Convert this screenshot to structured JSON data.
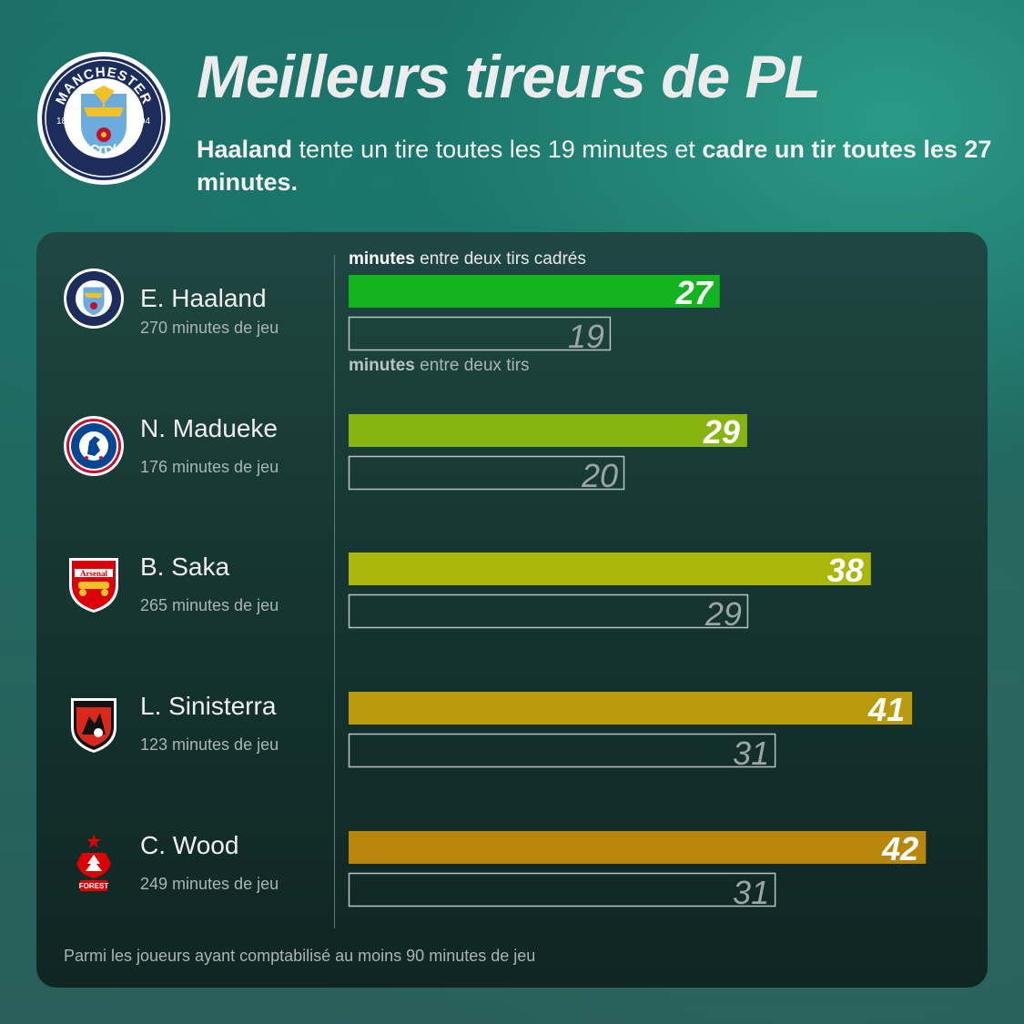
{
  "header": {
    "title": "Meilleurs tireurs de PL",
    "subtitle_bold_1": "Haaland",
    "subtitle_text_1": " tente un tire toutes les 19 minutes et ",
    "subtitle_bold_2": "cadre un tir toutes les 27 minutes."
  },
  "club_badge": {
    "top_text": "MANCHESTER",
    "bottom_text": "CITY",
    "year_left": "18",
    "year_right": "94",
    "colors": {
      "ring": "#1c2c5b",
      "sky": "#6cabdd",
      "gold": "#f0c228",
      "rose": "#c0102e"
    }
  },
  "legend": {
    "on_target_bold": "minutes",
    "on_target_text": " entre deux tirs cadrés",
    "shots_bold": "minutes",
    "shots_text": " entre deux tirs"
  },
  "footnote": "Parmi les joueurs ayant comptabilisé au moins 90 minutes de jeu",
  "players": [
    {
      "name": "E. Haaland",
      "minutes": "270 minutes de jeu",
      "club_icon": "manchester-city-crest"
    },
    {
      "name": "N. Madueke",
      "minutes": "176 minutes de jeu",
      "club_icon": "chelsea-crest"
    },
    {
      "name": "B. Saka",
      "minutes": "265 minutes de jeu",
      "club_icon": "arsenal-crest"
    },
    {
      "name": "L. Sinisterra",
      "minutes": "123 minutes de jeu",
      "club_icon": "bournemouth-crest"
    },
    {
      "name": "C. Wood",
      "minutes": "249 minutes de jeu",
      "club_icon": "nottingham-forest-crest"
    }
  ],
  "chart_data": {
    "type": "bar",
    "orientation": "horizontal",
    "categories": [
      "E. Haaland",
      "N. Madueke",
      "B. Saka",
      "L. Sinisterra",
      "C. Wood"
    ],
    "series": [
      {
        "name": "minutes entre deux tirs cadrés",
        "values": [
          27,
          29,
          38,
          41,
          42
        ],
        "colors": [
          "#12b51f",
          "#86b30d",
          "#aab60a",
          "#b89a0b",
          "#b8860b"
        ],
        "style": "filled"
      },
      {
        "name": "minutes entre deux tirs",
        "values": [
          19,
          20,
          29,
          31,
          31
        ],
        "style": "outline"
      }
    ],
    "xlim": [
      0,
      43
    ],
    "grid": false
  }
}
